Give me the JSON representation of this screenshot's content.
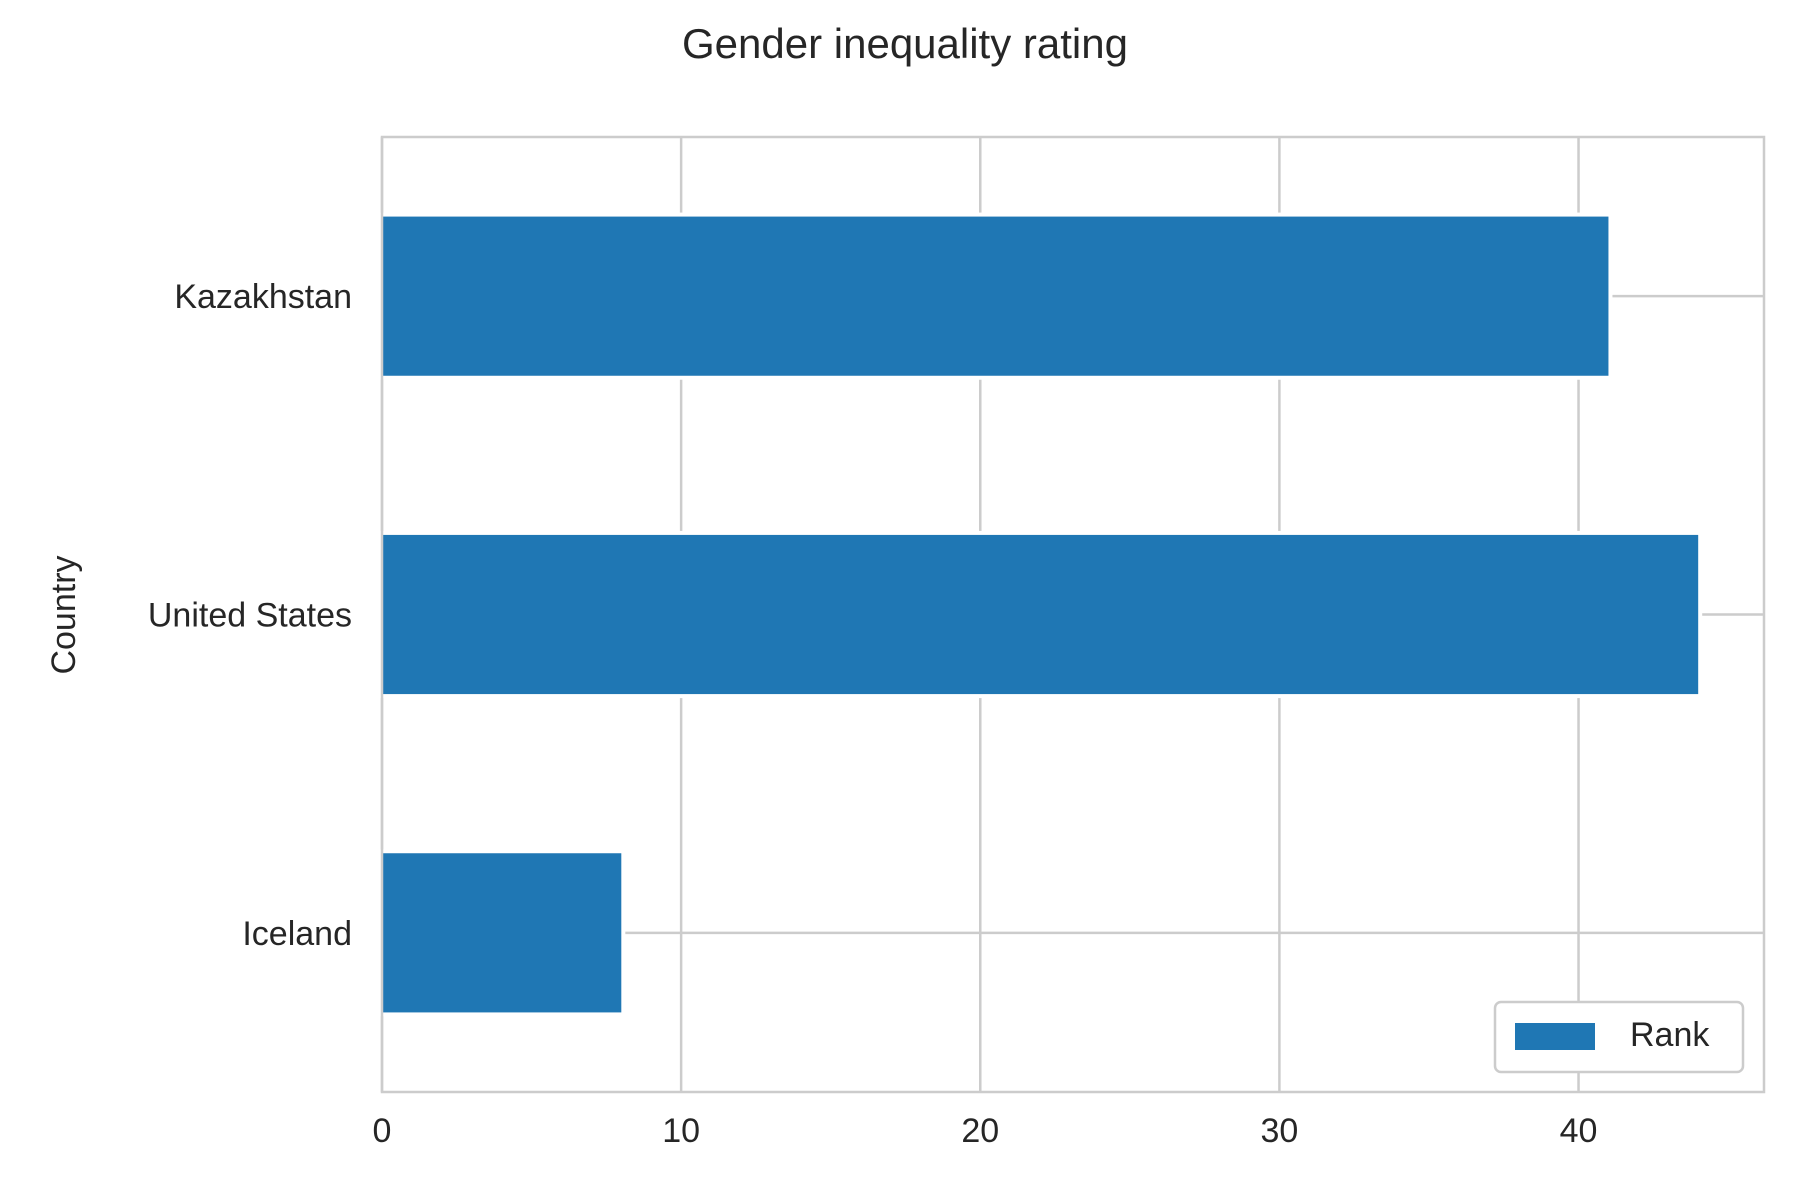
{
  "chart_data": {
    "type": "bar",
    "orientation": "horizontal",
    "title": "Gender inequality rating",
    "xlabel": "",
    "ylabel": "Country",
    "categories": [
      "Iceland",
      "United States",
      "Kazakhstan"
    ],
    "series": [
      {
        "name": "Rank",
        "values": [
          8,
          44,
          41
        ],
        "color": "#1f77b4"
      }
    ],
    "xlim": [
      0,
      46.2
    ],
    "xticks": [
      0,
      10,
      20,
      30,
      40
    ],
    "grid": true,
    "legend_position": "bottom-right"
  }
}
